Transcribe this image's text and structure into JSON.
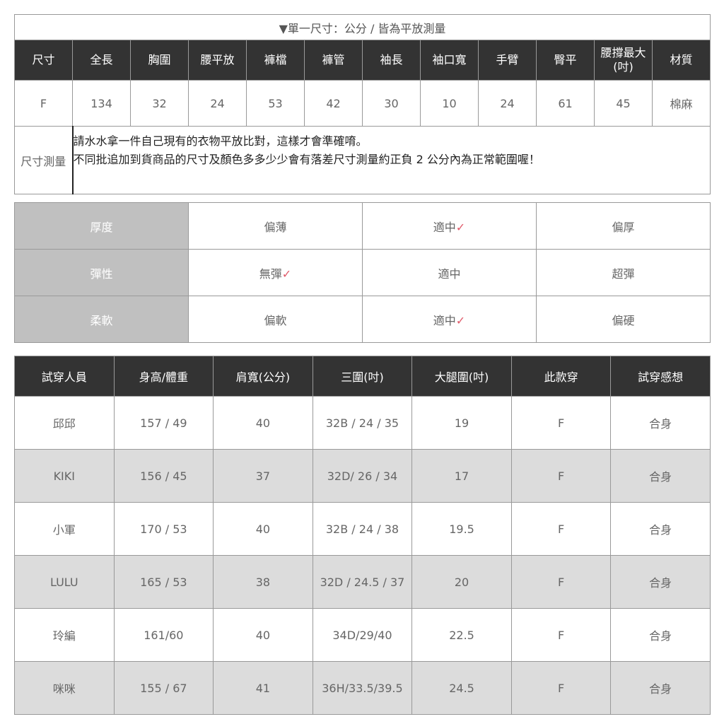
{
  "size_table": {
    "title": "▼單一尺寸：公分 / 皆為平放測量",
    "headers": [
      "尺寸",
      "全長",
      "胸圍",
      "腰平放",
      "褲檔",
      "褲管",
      "袖長",
      "袖口寬",
      "手臂",
      "臀平",
      "腰撐最大(吋)",
      "材質"
    ],
    "values": [
      "F",
      "134",
      "32",
      "24",
      "53",
      "42",
      "30",
      "10",
      "24",
      "61",
      "45",
      "棉麻"
    ],
    "note_label": "尺寸測量",
    "note_lines": [
      "請水水拿一件自己現有的衣物平放比對，這樣才會準確唷。",
      "不同批追加到貨商品的尺寸及顏色多多少少會有落差尺寸測量約正負 2 公分內為正常範圍喔！"
    ]
  },
  "fabric_table": {
    "check_mark": "✓",
    "check_color": "#e05a6a",
    "rows": [
      {
        "label": "厚度",
        "options": [
          "偏薄",
          "適中",
          "偏厚"
        ],
        "selected": 1
      },
      {
        "label": "彈性",
        "options": [
          "無彈",
          "適中",
          "超彈"
        ],
        "selected": 0
      },
      {
        "label": "柔軟",
        "options": [
          "偏軟",
          "適中",
          "偏硬"
        ],
        "selected": 1
      }
    ]
  },
  "fitting_table": {
    "headers": [
      "試穿人員",
      "身高/體重",
      "肩寬(公分)",
      "三圍(吋)",
      "大腿圍(吋)",
      "此款穿",
      "試穿感想"
    ],
    "rows": [
      [
        "邱邱",
        "157 / 49",
        "40",
        "32B / 24 / 35",
        "19",
        "F",
        "合身"
      ],
      [
        "KIKI",
        "156 / 45",
        "37",
        "32D/ 26 / 34",
        "17",
        "F",
        "合身"
      ],
      [
        "小軍",
        "170 / 53",
        "40",
        "32B / 24 / 38",
        "19.5",
        "F",
        "合身"
      ],
      [
        "LULU",
        "165 / 53",
        "38",
        "32D / 24.5 / 37",
        "20",
        "F",
        "合身"
      ],
      [
        "玲編",
        "161/60",
        "40",
        "34D/29/40",
        "22.5",
        "F",
        "合身"
      ],
      [
        "咪咪",
        "155 / 67",
        "41",
        "36H/33.5/39.5",
        "24.5",
        "F",
        "合身"
      ]
    ]
  }
}
